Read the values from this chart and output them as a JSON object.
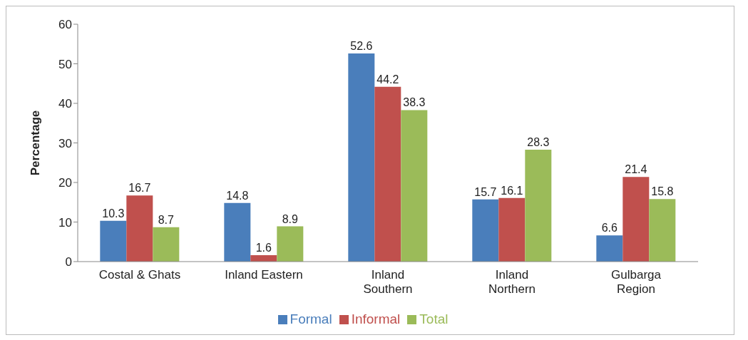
{
  "chart_data": {
    "type": "bar",
    "ylabel": "Percentage",
    "categories": [
      "Costal & Ghats",
      "Inland Eastern",
      "Inland Southern",
      "Inland Northern",
      "Gulbarga Region"
    ],
    "series": [
      {
        "name": "Formal",
        "color": "#4a7ebb",
        "values": [
          10.3,
          14.8,
          52.6,
          15.7,
          6.6
        ]
      },
      {
        "name": "Informal",
        "color": "#c0504d",
        "values": [
          16.7,
          1.6,
          44.2,
          16.1,
          21.4
        ]
      },
      {
        "name": "Total",
        "color": "#9bbb59",
        "values": [
          8.7,
          8.9,
          38.3,
          28.3,
          15.8
        ]
      }
    ],
    "ylim": [
      0,
      60
    ],
    "yticks": [
      0,
      10,
      20,
      30,
      40,
      50,
      60
    ],
    "data_labels": true,
    "legend": "bottom",
    "grid": false
  }
}
